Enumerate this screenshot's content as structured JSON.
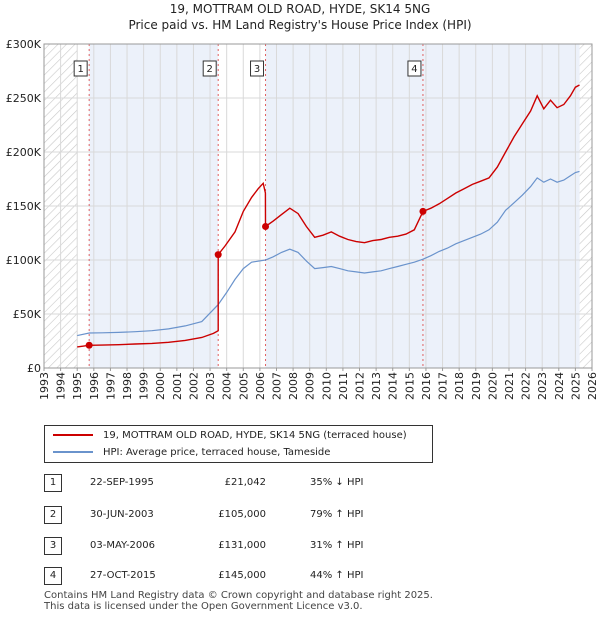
{
  "header": {
    "title": "19, MOTTRAM OLD ROAD, HYDE, SK14 5NG",
    "subtitle": "Price paid vs. HM Land Registry's House Price Index (HPI)"
  },
  "legend": {
    "property_label": "19, MOTTRAM OLD ROAD, HYDE, SK14 5NG (terraced house)",
    "hpi_label": "HPI: Average price, terraced house, Tameside"
  },
  "transactions": [
    {
      "num": "1",
      "date": "22-SEP-1995",
      "price": "£21,042",
      "hpi": "35% ↓ HPI"
    },
    {
      "num": "2",
      "date": "30-JUN-2003",
      "price": "£105,000",
      "hpi": "79% ↑ HPI"
    },
    {
      "num": "3",
      "date": "03-MAY-2006",
      "price": "£131,000",
      "hpi": "31% ↑ HPI"
    },
    {
      "num": "4",
      "date": "27-OCT-2015",
      "price": "£145,000",
      "hpi": "44% ↑ HPI"
    }
  ],
  "footer": {
    "line1": "Contains HM Land Registry data © Crown copyright and database right 2025.",
    "line2": "This data is licensed under the Open Government Licence v3.0."
  },
  "colors": {
    "property": "#cc0000",
    "hpi": "#6a93cc",
    "grid": "#d9d9d9",
    "shade": "#dde6f5",
    "hatch": "#c8c8c8"
  },
  "chart_data": {
    "type": "line",
    "title": "19, MOTTRAM OLD ROAD, HYDE, SK14 5NG",
    "subtitle": "Price paid vs. HM Land Registry's House Price Index (HPI)",
    "xlabel": "",
    "ylabel": "",
    "xlim": [
      1993,
      2026
    ],
    "ylim": [
      0,
      300000
    ],
    "x_ticks": [
      "1993",
      "1994",
      "1995",
      "1996",
      "1997",
      "1998",
      "1999",
      "2000",
      "2001",
      "2002",
      "2003",
      "2004",
      "2005",
      "2006",
      "2007",
      "2008",
      "2009",
      "2010",
      "2011",
      "2012",
      "2013",
      "2014",
      "2015",
      "2016",
      "2017",
      "2018",
      "2019",
      "2020",
      "2021",
      "2022",
      "2023",
      "2024",
      "2025",
      "2026"
    ],
    "y_ticks": [
      {
        "value": 0,
        "label": "£0"
      },
      {
        "value": 50000,
        "label": "£50K"
      },
      {
        "value": 100000,
        "label": "£100K"
      },
      {
        "value": 150000,
        "label": "£150K"
      },
      {
        "value": 200000,
        "label": "£200K"
      },
      {
        "value": 250000,
        "label": "£250K"
      },
      {
        "value": 300000,
        "label": "£300K"
      }
    ],
    "grid": true,
    "legend_position": "below",
    "hatched_ranges": [
      [
        1993,
        1995.0
      ],
      [
        2025.25,
        2026
      ]
    ],
    "series": [
      {
        "name": "19, MOTTRAM OLD ROAD, HYDE, SK14 5NG (terraced house)",
        "points": [
          [
            1995.0,
            19500
          ],
          [
            1995.72,
            21042
          ],
          [
            1996.5,
            21200
          ],
          [
            1997.5,
            21600
          ],
          [
            1998.5,
            22200
          ],
          [
            1999.5,
            22800
          ],
          [
            2000.5,
            23800
          ],
          [
            2001.5,
            25600
          ],
          [
            2002.5,
            28200
          ],
          [
            2003.2,
            32000
          ],
          [
            2003.49,
            34500
          ],
          [
            2003.49,
            105000
          ],
          [
            2003.9,
            113000
          ],
          [
            2004.5,
            126000
          ],
          [
            2005.0,
            145000
          ],
          [
            2005.5,
            158000
          ],
          [
            2005.9,
            166000
          ],
          [
            2006.2,
            171000
          ],
          [
            2006.33,
            162000
          ],
          [
            2006.34,
            131000
          ],
          [
            2006.8,
            136000
          ],
          [
            2007.3,
            142000
          ],
          [
            2007.8,
            148000
          ],
          [
            2008.3,
            143000
          ],
          [
            2008.8,
            131000
          ],
          [
            2009.3,
            121000
          ],
          [
            2009.8,
            123000
          ],
          [
            2010.3,
            126000
          ],
          [
            2010.8,
            122000
          ],
          [
            2011.3,
            119000
          ],
          [
            2011.8,
            117000
          ],
          [
            2012.3,
            116000
          ],
          [
            2012.8,
            118000
          ],
          [
            2013.3,
            119000
          ],
          [
            2013.8,
            121000
          ],
          [
            2014.3,
            122000
          ],
          [
            2014.8,
            124000
          ],
          [
            2015.3,
            128000
          ],
          [
            2015.82,
            145000
          ],
          [
            2016.3,
            148000
          ],
          [
            2016.8,
            152000
          ],
          [
            2017.3,
            157000
          ],
          [
            2017.8,
            162000
          ],
          [
            2018.3,
            166000
          ],
          [
            2018.8,
            170000
          ],
          [
            2019.3,
            173000
          ],
          [
            2019.8,
            176000
          ],
          [
            2020.3,
            186000
          ],
          [
            2020.8,
            200000
          ],
          [
            2021.3,
            214000
          ],
          [
            2021.8,
            226000
          ],
          [
            2022.3,
            238000
          ],
          [
            2022.7,
            252000
          ],
          [
            2023.1,
            240000
          ],
          [
            2023.5,
            248000
          ],
          [
            2023.9,
            241000
          ],
          [
            2024.3,
            244000
          ],
          [
            2024.7,
            252000
          ],
          [
            2025.0,
            260000
          ],
          [
            2025.25,
            262000
          ]
        ]
      },
      {
        "name": "HPI: Average price, terraced house, Tameside",
        "points": [
          [
            1995.0,
            30000
          ],
          [
            1995.72,
            32400
          ],
          [
            1996.5,
            32600
          ],
          [
            1997.5,
            33000
          ],
          [
            1998.5,
            33600
          ],
          [
            1999.5,
            34500
          ],
          [
            2000.5,
            36200
          ],
          [
            2001.5,
            39000
          ],
          [
            2002.5,
            43000
          ],
          [
            2003.49,
            58700
          ],
          [
            2004.0,
            70000
          ],
          [
            2004.5,
            82000
          ],
          [
            2005.0,
            92000
          ],
          [
            2005.5,
            98000
          ],
          [
            2006.34,
            100000
          ],
          [
            2006.8,
            103000
          ],
          [
            2007.3,
            107000
          ],
          [
            2007.8,
            110000
          ],
          [
            2008.3,
            107000
          ],
          [
            2008.8,
            99000
          ],
          [
            2009.3,
            92000
          ],
          [
            2009.8,
            93000
          ],
          [
            2010.3,
            94000
          ],
          [
            2010.8,
            92000
          ],
          [
            2011.3,
            90000
          ],
          [
            2011.8,
            89000
          ],
          [
            2012.3,
            88000
          ],
          [
            2012.8,
            89000
          ],
          [
            2013.3,
            90000
          ],
          [
            2013.8,
            92000
          ],
          [
            2014.3,
            94000
          ],
          [
            2014.8,
            96000
          ],
          [
            2015.3,
            98000
          ],
          [
            2015.82,
            100700
          ],
          [
            2016.3,
            104000
          ],
          [
            2016.8,
            108000
          ],
          [
            2017.3,
            111000
          ],
          [
            2017.8,
            115000
          ],
          [
            2018.3,
            118000
          ],
          [
            2018.8,
            121000
          ],
          [
            2019.3,
            124000
          ],
          [
            2019.8,
            128000
          ],
          [
            2020.3,
            135000
          ],
          [
            2020.8,
            146000
          ],
          [
            2021.3,
            153000
          ],
          [
            2021.8,
            160000
          ],
          [
            2022.3,
            168000
          ],
          [
            2022.7,
            176000
          ],
          [
            2023.1,
            172000
          ],
          [
            2023.5,
            175000
          ],
          [
            2023.9,
            172000
          ],
          [
            2024.3,
            174000
          ],
          [
            2024.7,
            178000
          ],
          [
            2025.0,
            181000
          ],
          [
            2025.25,
            182000
          ]
        ]
      }
    ],
    "markers": [
      {
        "label": "1",
        "x": 1995.72,
        "y": 21042
      },
      {
        "label": "2",
        "x": 2003.49,
        "y": 105000
      },
      {
        "label": "3",
        "x": 2006.34,
        "y": 131000
      },
      {
        "label": "4",
        "x": 2015.82,
        "y": 145000
      }
    ]
  }
}
